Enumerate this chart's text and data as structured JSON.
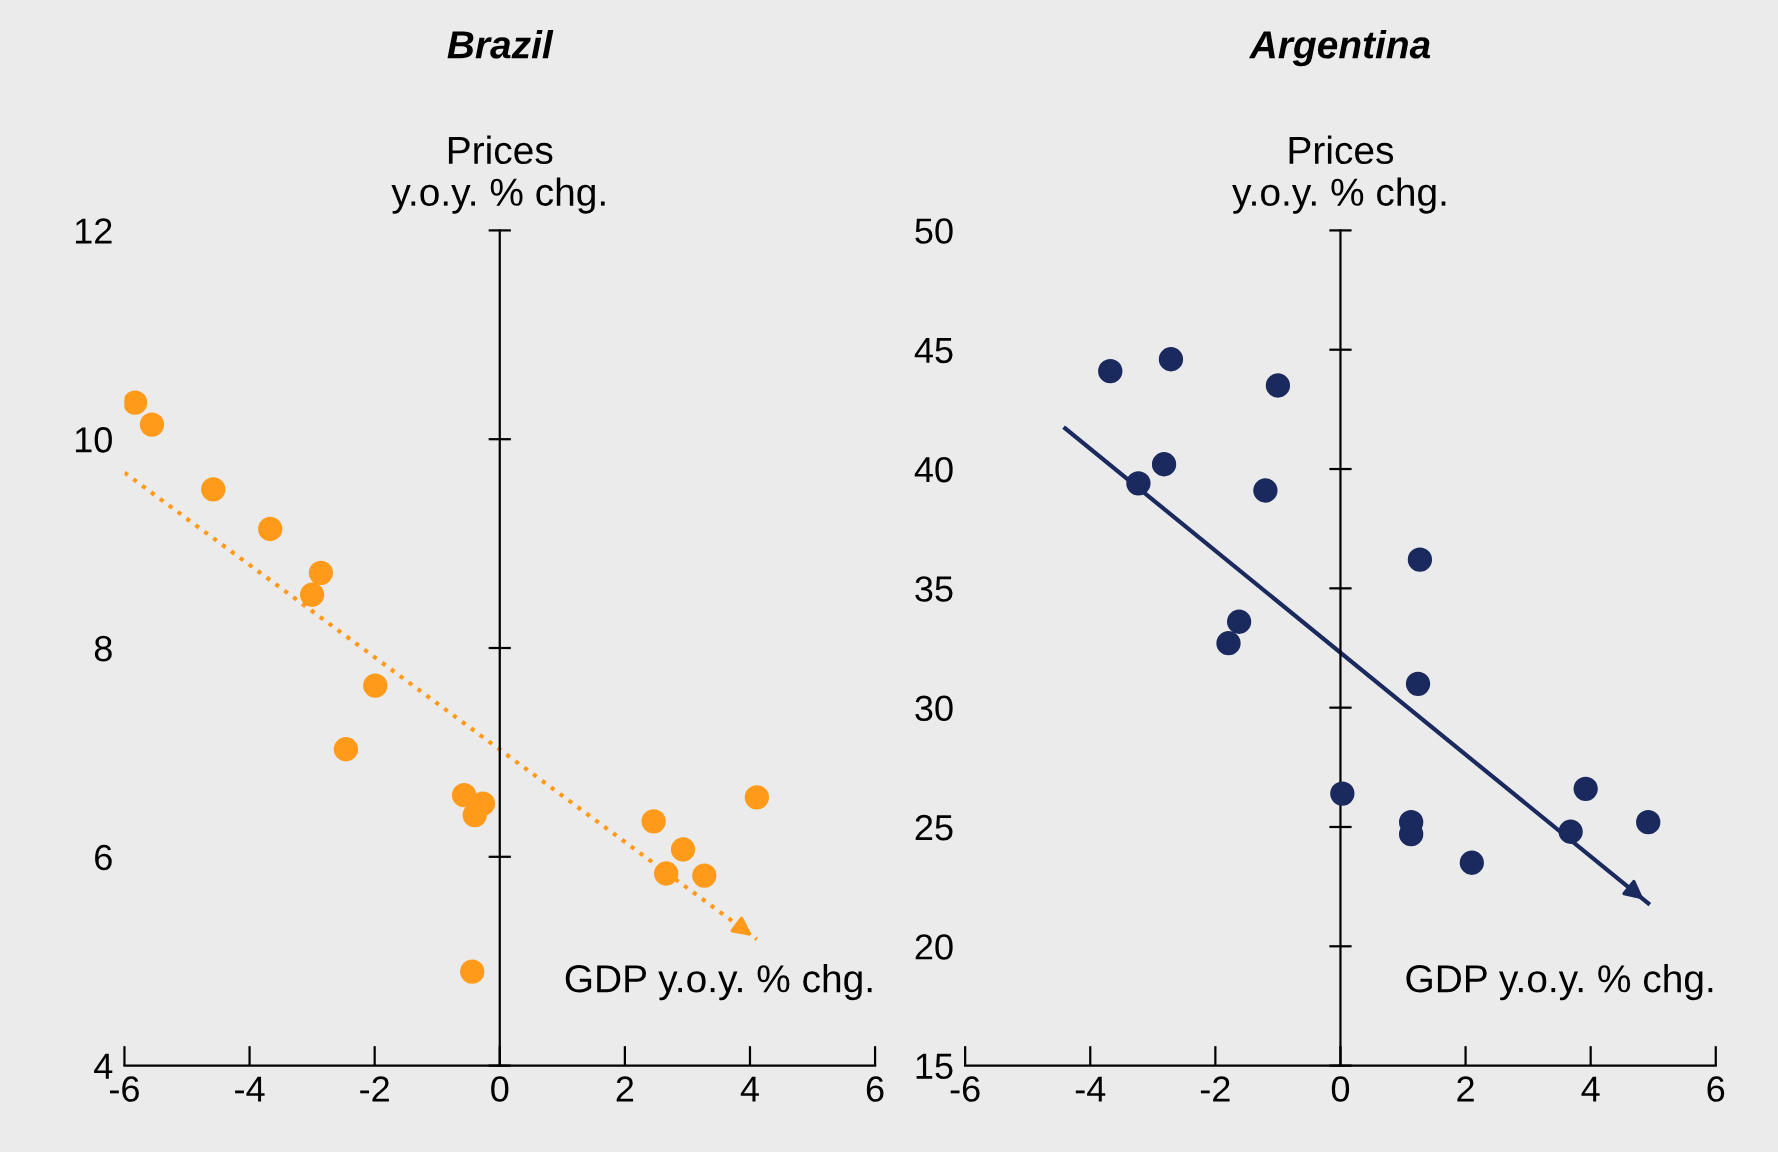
{
  "chart_data": [
    {
      "type": "scatter",
      "title": "Brazil",
      "xlabel": "GDP y.o.y. % chg.",
      "ylabel": "Prices\ny.o.y. % chg.",
      "xlim": [
        -6,
        6
      ],
      "xticks": [
        -6,
        -4,
        -2,
        0,
        2,
        4,
        6
      ],
      "ylim": [
        4,
        12
      ],
      "yticks": [
        4,
        6,
        8,
        10,
        12
      ],
      "legend": false,
      "marker": "circle",
      "series": [
        {
          "color": "#ff9a1a",
          "x": [
            -5.83,
            -5.56,
            -4.58,
            -3.67,
            -2.86,
            -3.0,
            -1.99,
            -2.46,
            -0.57,
            -0.4,
            -0.27,
            -0.44,
            2.46,
            2.93,
            2.66,
            3.27,
            4.11
          ],
          "values": [
            10.35,
            10.14,
            9.52,
            9.14,
            8.72,
            8.51,
            7.64,
            7.03,
            6.59,
            6.4,
            6.51,
            4.9,
            6.34,
            6.07,
            5.84,
            5.82,
            6.57
          ]
        },
        {
          "type": "line",
          "marker": "none",
          "color": "#ff9a1a",
          "line_style": "dotted",
          "x": [
            -6,
            4.11
          ],
          "values": [
            9.68,
            5.21
          ]
        }
      ]
    },
    {
      "type": "scatter",
      "title": "Argentina",
      "xlabel": "GDP y.o.y. % chg.",
      "ylabel": "Prices\ny.o.y. % chg.",
      "xlim": [
        -6,
        6
      ],
      "xticks": [
        -6,
        -4,
        -2,
        0,
        2,
        4,
        6
      ],
      "ylim": [
        15,
        50
      ],
      "yticks": [
        15,
        20,
        25,
        30,
        35,
        40,
        45,
        50
      ],
      "legend": false,
      "marker": "circle",
      "series": [
        {
          "color": "#1b2a5e",
          "x": [
            -3.68,
            -2.71,
            -3.23,
            -2.82,
            -1.0,
            -1.2,
            -1.62,
            -1.79,
            1.27,
            1.24,
            0.03,
            1.13,
            1.13,
            2.1,
            3.92,
            3.68,
            4.92
          ],
          "values": [
            44.1,
            44.6,
            39.4,
            40.2,
            43.5,
            39.1,
            33.6,
            32.7,
            36.2,
            31.0,
            26.4,
            25.2,
            24.7,
            23.5,
            26.6,
            24.8,
            25.2
          ]
        },
        {
          "type": "line",
          "marker": "none",
          "color": "#1b2a5e",
          "line_style": "solid",
          "x": [
            -4.4,
            4.92
          ],
          "values": [
            41.7,
            21.8
          ]
        }
      ]
    }
  ]
}
